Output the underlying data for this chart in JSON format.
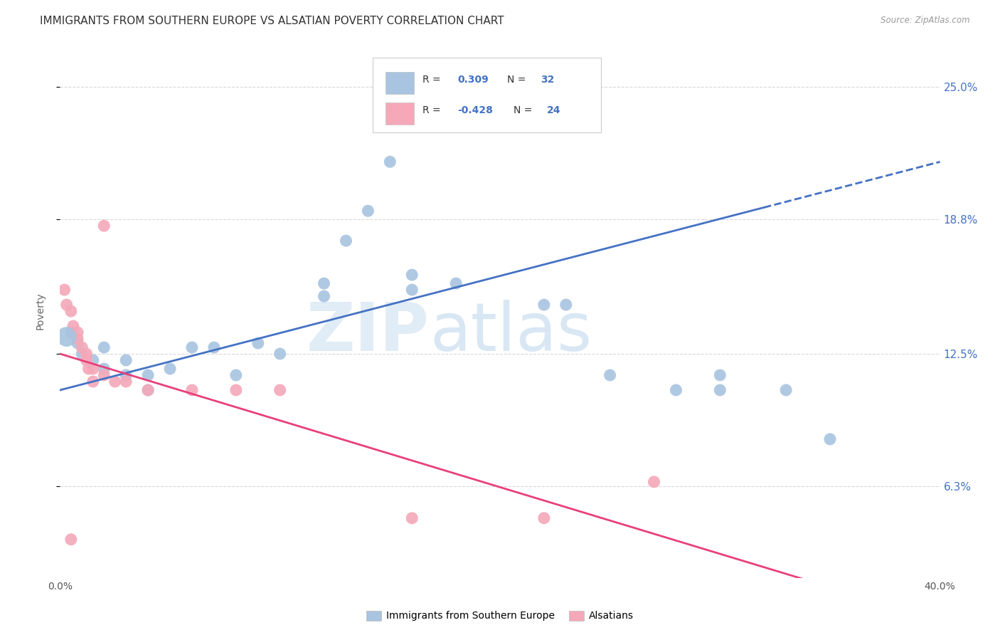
{
  "title": "IMMIGRANTS FROM SOUTHERN EUROPE VS ALSATIAN POVERTY CORRELATION CHART",
  "source": "Source: ZipAtlas.com",
  "ylabel": "Poverty",
  "y_tick_labels": [
    "6.3%",
    "12.5%",
    "18.8%",
    "25.0%"
  ],
  "y_ticks": [
    0.063,
    0.125,
    0.188,
    0.25
  ],
  "xlim": [
    0.0,
    0.4
  ],
  "ylim": [
    0.02,
    0.27
  ],
  "R_blue": 0.309,
  "N_blue": 32,
  "R_pink": -0.428,
  "N_pink": 24,
  "blue_color": "#a8c4e0",
  "pink_color": "#f4a8b8",
  "blue_line_color": "#4472c4",
  "pink_line_color": "#e8407a",
  "scatter_blue": [
    [
      0.005,
      0.135
    ],
    [
      0.008,
      0.13
    ],
    [
      0.01,
      0.125
    ],
    [
      0.015,
      0.122
    ],
    [
      0.02,
      0.118
    ],
    [
      0.02,
      0.128
    ],
    [
      0.03,
      0.122
    ],
    [
      0.03,
      0.115
    ],
    [
      0.04,
      0.115
    ],
    [
      0.04,
      0.108
    ],
    [
      0.05,
      0.118
    ],
    [
      0.06,
      0.128
    ],
    [
      0.07,
      0.128
    ],
    [
      0.08,
      0.115
    ],
    [
      0.09,
      0.13
    ],
    [
      0.1,
      0.125
    ],
    [
      0.12,
      0.158
    ],
    [
      0.12,
      0.152
    ],
    [
      0.13,
      0.178
    ],
    [
      0.14,
      0.192
    ],
    [
      0.15,
      0.215
    ],
    [
      0.16,
      0.155
    ],
    [
      0.16,
      0.162
    ],
    [
      0.18,
      0.158
    ],
    [
      0.22,
      0.148
    ],
    [
      0.23,
      0.148
    ],
    [
      0.25,
      0.115
    ],
    [
      0.28,
      0.108
    ],
    [
      0.3,
      0.108
    ],
    [
      0.3,
      0.115
    ],
    [
      0.33,
      0.108
    ],
    [
      0.35,
      0.085
    ]
  ],
  "scatter_pink": [
    [
      0.002,
      0.155
    ],
    [
      0.003,
      0.148
    ],
    [
      0.005,
      0.145
    ],
    [
      0.006,
      0.138
    ],
    [
      0.008,
      0.135
    ],
    [
      0.008,
      0.132
    ],
    [
      0.01,
      0.128
    ],
    [
      0.012,
      0.125
    ],
    [
      0.012,
      0.122
    ],
    [
      0.013,
      0.118
    ],
    [
      0.015,
      0.118
    ],
    [
      0.015,
      0.112
    ],
    [
      0.02,
      0.115
    ],
    [
      0.02,
      0.185
    ],
    [
      0.025,
      0.112
    ],
    [
      0.03,
      0.112
    ],
    [
      0.04,
      0.108
    ],
    [
      0.06,
      0.108
    ],
    [
      0.08,
      0.108
    ],
    [
      0.1,
      0.108
    ],
    [
      0.16,
      0.048
    ],
    [
      0.22,
      0.048
    ],
    [
      0.27,
      0.065
    ],
    [
      0.005,
      0.038
    ]
  ],
  "watermark_zip": "ZIP",
  "watermark_atlas": "atlas",
  "watermark_color": "#c8dff0",
  "legend_labels": [
    "Immigrants from Southern Europe",
    "Alsatians"
  ],
  "background_color": "#ffffff",
  "grid_color": "#d8d8d8",
  "title_fontsize": 11,
  "axis_fontsize": 10,
  "legend_fontsize": 10,
  "right_tick_color": "#4472c4"
}
